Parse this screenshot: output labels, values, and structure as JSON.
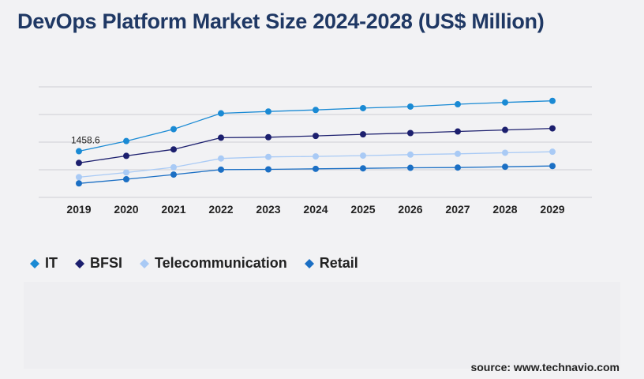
{
  "title": "DevOps Platform Market Size 2024-2028 (US$ Million)",
  "source": "source: www.technavio.com",
  "chart_data": {
    "type": "line",
    "x": [
      "2019",
      "2020",
      "2021",
      "2022",
      "2023",
      "2024",
      "2025",
      "2026",
      "2027",
      "2028",
      "2029"
    ],
    "series": [
      {
        "name": "IT",
        "color": "#1a8ad4",
        "values": [
          1458.6,
          1850,
          2310,
          2920,
          2990,
          3050,
          3120,
          3180,
          3270,
          3340,
          3400
        ]
      },
      {
        "name": "BFSI",
        "color": "#1c1f6e",
        "values": [
          1010,
          1280,
          1530,
          1980,
          2000,
          2050,
          2110,
          2160,
          2220,
          2280,
          2340
        ]
      },
      {
        "name": "Telecommunication",
        "color": "#a9caf5",
        "values": [
          460,
          640,
          840,
          1180,
          1240,
          1260,
          1290,
          1330,
          1360,
          1400,
          1440
        ]
      },
      {
        "name": "Retail",
        "color": "#1b6fc4",
        "values": [
          220,
          380,
          560,
          750,
          760,
          780,
          800,
          820,
          830,
          860,
          890
        ]
      }
    ],
    "data_labels": [
      {
        "series": "IT",
        "x": "2019",
        "text": "1458.6"
      }
    ],
    "ylim": [
      -320,
      3940
    ],
    "gridlines": [
      -320,
      745,
      1810,
      2875,
      3940
    ],
    "grid": true,
    "y_tick_labels": false,
    "legend_position": "bottom-left"
  }
}
